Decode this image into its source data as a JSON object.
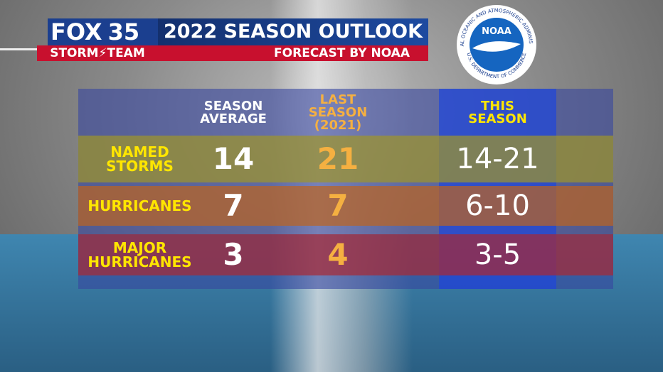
{
  "header": {
    "logo": {
      "brand": "FOX",
      "channel": "35",
      "team": [
        "STORM",
        "TEAM"
      ]
    },
    "title": "2022 SEASON OUTLOOK",
    "subtitle": "FORECAST BY NOAA"
  },
  "noaa_logo": {
    "name": "NOAA",
    "ring_top": "NATIONAL OCEANIC AND ATMOSPHERIC ADMINISTRATION",
    "ring_bottom": "U.S. DEPARTMENT OF COMMERCE"
  },
  "table": {
    "columns": [
      [
        "SEASON",
        "AVERAGE"
      ],
      [
        "LAST",
        "SEASON",
        "(2021)"
      ],
      [
        "THIS",
        "SEASON"
      ]
    ],
    "rows": [
      [
        [
          "NAMED",
          "STORMS"
        ],
        14,
        21,
        "14-21"
      ],
      [
        [
          "HURRICANES"
        ],
        7,
        7,
        "6-10"
      ],
      [
        [
          "MAJOR",
          "HURRICANES"
        ],
        3,
        4,
        "3-5"
      ]
    ]
  }
}
